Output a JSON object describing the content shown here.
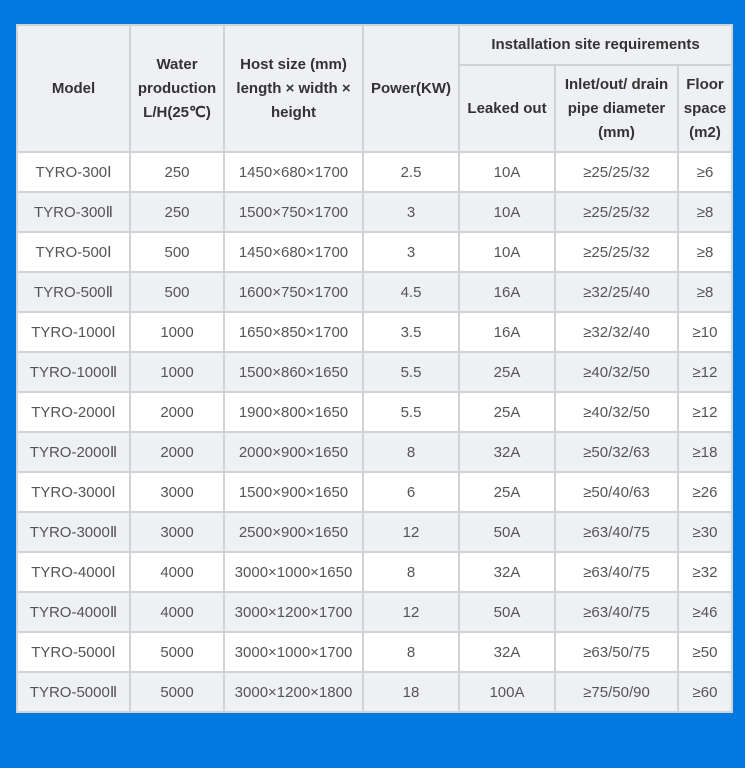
{
  "headers": {
    "model": "Model",
    "water": "Water production L/H(25℃)",
    "host": "Host size (mm) length × width × height",
    "power": "Power(KW)",
    "install": "Installation site requirements",
    "leaked": "Leaked out",
    "pipe": "Inlet/out/ drain pipe diameter (mm)",
    "floor": "Floor space (m2)"
  },
  "rows": [
    [
      "TYRO-300Ⅰ",
      "250",
      "1450×680×1700",
      "2.5",
      "10A",
      "≥25/25/32",
      "≥6"
    ],
    [
      "TYRO-300Ⅱ",
      "250",
      "1500×750×1700",
      "3",
      "10A",
      "≥25/25/32",
      "≥8"
    ],
    [
      "TYRO-500Ⅰ",
      "500",
      "1450×680×1700",
      "3",
      "10A",
      "≥25/25/32",
      "≥8"
    ],
    [
      "TYRO-500Ⅱ",
      "500",
      "1600×750×1700",
      "4.5",
      "16A",
      "≥32/25/40",
      "≥8"
    ],
    [
      "TYRO-1000Ⅰ",
      "1000",
      "1650×850×1700",
      "3.5",
      "16A",
      "≥32/32/40",
      "≥10"
    ],
    [
      "TYRO-1000Ⅱ",
      "1000",
      "1500×860×1650",
      "5.5",
      "25A",
      "≥40/32/50",
      "≥12"
    ],
    [
      "TYRO-2000Ⅰ",
      "2000",
      "1900×800×1650",
      "5.5",
      "25A",
      "≥40/32/50",
      "≥12"
    ],
    [
      "TYRO-2000Ⅱ",
      "2000",
      "2000×900×1650",
      "8",
      "32A",
      "≥50/32/63",
      "≥18"
    ],
    [
      "TYRO-3000Ⅰ",
      "3000",
      "1500×900×1650",
      "6",
      "25A",
      "≥50/40/63",
      "≥26"
    ],
    [
      "TYRO-3000Ⅱ",
      "3000",
      "2500×900×1650",
      "12",
      "50A",
      "≥63/40/75",
      "≥30"
    ],
    [
      "TYRO-4000Ⅰ",
      "4000",
      "3000×1000×1650",
      "8",
      "32A",
      "≥63/40/75",
      "≥32"
    ],
    [
      "TYRO-4000Ⅱ",
      "4000",
      "3000×1200×1700",
      "12",
      "50A",
      "≥63/40/75",
      "≥46"
    ],
    [
      "TYRO-5000Ⅰ",
      "5000",
      "3000×1000×1700",
      "8",
      "32A",
      "≥63/50/75",
      "≥50"
    ],
    [
      "TYRO-5000Ⅱ",
      "5000",
      "3000×1200×1800",
      "18",
      "100A",
      "≥75/50/90",
      "≥60"
    ]
  ],
  "colors": {
    "background": "#0279e0",
    "header_bg": "#eef0f3",
    "border": "#cfd3d8"
  }
}
